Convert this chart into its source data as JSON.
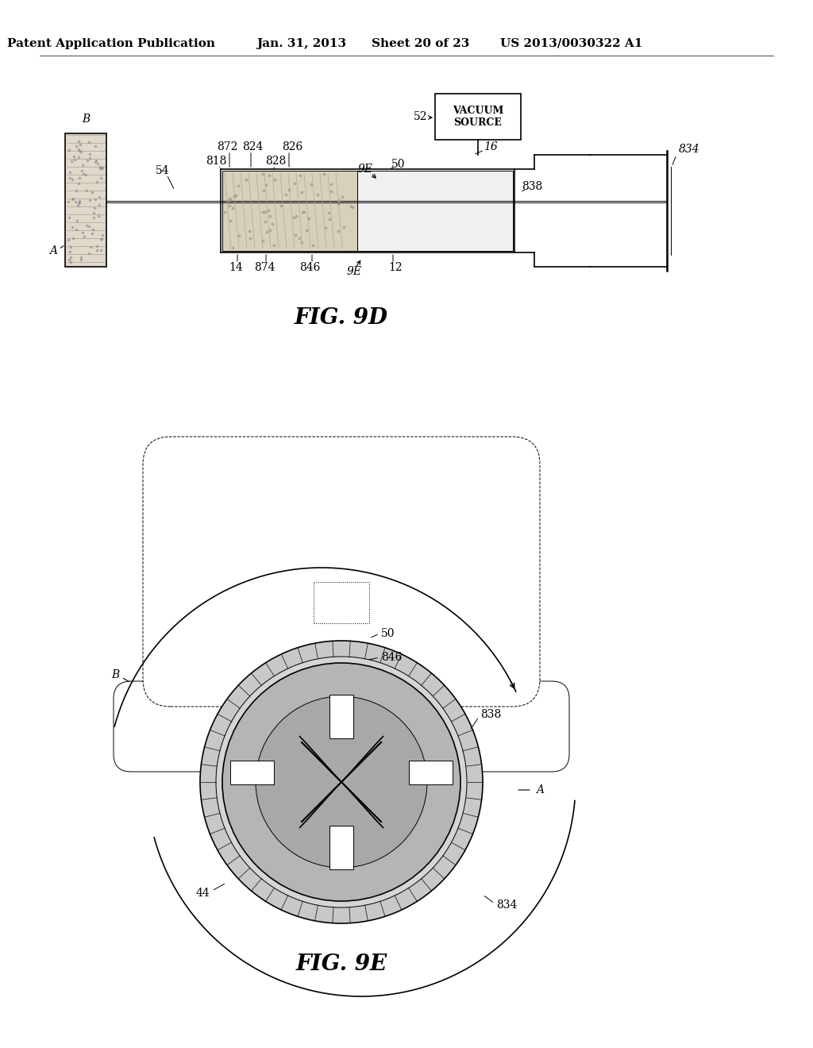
{
  "bg_color": "#ffffff",
  "header_text1": "Patent Application Publication",
  "header_text2": "Jan. 31, 2013",
  "header_text3": "Sheet 20 of 23",
  "header_text4": "US 2013/0030322 A1",
  "fig9d_title": "FIG. 9D",
  "fig9e_title": "FIG. 9E",
  "fig_title_fontsize": 20,
  "header_fontsize": 11,
  "label_fontsize": 10
}
